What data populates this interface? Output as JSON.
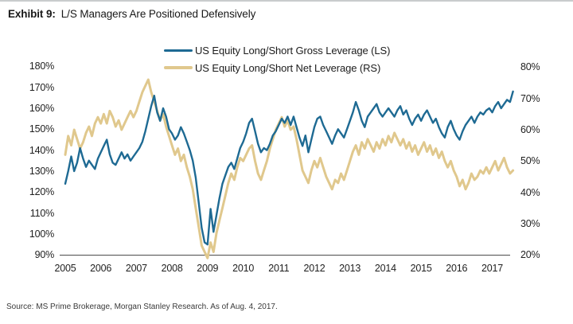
{
  "header": {
    "label": "Exhibit 9:",
    "title": "L/S Managers Are Positioned Defensively"
  },
  "footer": {
    "source": "Source: MS Prime Brokerage, Morgan Stanley Research. As of Aug. 4, 2017."
  },
  "chart_data": {
    "type": "line",
    "title": "L/S Managers Are Positioned Defensively",
    "grid": false,
    "legend_position": "top-center",
    "x_start_year": 2005,
    "points_per_year": 12,
    "x_tick_labels": [
      "2005",
      "2006",
      "2007",
      "2008",
      "2009",
      "2010",
      "2011",
      "2012",
      "2013",
      "2014",
      "2015",
      "2016",
      "2017"
    ],
    "x_tick_values": [
      2005,
      2006,
      2007,
      2008,
      2009,
      2010,
      2011,
      2012,
      2013,
      2014,
      2015,
      2016,
      2017
    ],
    "axes": {
      "left": {
        "min": 90,
        "max": 180,
        "tick_labels": [
          "180%",
          "170%",
          "160%",
          "150%",
          "140%",
          "130%",
          "120%",
          "110%",
          "100%",
          "90%"
        ],
        "tick_values": [
          180,
          170,
          160,
          150,
          140,
          130,
          120,
          110,
          100,
          90
        ]
      },
      "right": {
        "min": 20,
        "max": 80,
        "tick_labels": [
          "80%",
          "70%",
          "60%",
          "50%",
          "40%",
          "30%",
          "20%"
        ],
        "tick_values": [
          80,
          70,
          60,
          50,
          40,
          30,
          20
        ]
      }
    },
    "series": [
      {
        "name": "US Equity Long/Short Gross Leverage (LS)",
        "axis": "left",
        "color": "#1e6a93",
        "unit": "%",
        "values": [
          124,
          130,
          137,
          130,
          134,
          141,
          136,
          132,
          135,
          133,
          131,
          136,
          139,
          142,
          145,
          138,
          134,
          133,
          136,
          139,
          136,
          138,
          135,
          137,
          139,
          141,
          144,
          149,
          155,
          161,
          166,
          158,
          154,
          160,
          156,
          150,
          148,
          145,
          147,
          151,
          148,
          144,
          140,
          135,
          127,
          115,
          103,
          96,
          95,
          112,
          101,
          109,
          117,
          124,
          128,
          132,
          134,
          131,
          136,
          141,
          144,
          148,
          153,
          155,
          149,
          143,
          139,
          141,
          140,
          143,
          147,
          149,
          152,
          155,
          153,
          156,
          152,
          156,
          151,
          146,
          142,
          147,
          139,
          145,
          151,
          155,
          156,
          152,
          149,
          146,
          143,
          147,
          150,
          148,
          146,
          150,
          154,
          158,
          163,
          159,
          154,
          151,
          156,
          158,
          160,
          162,
          158,
          156,
          158,
          160,
          158,
          156,
          159,
          161,
          157,
          159,
          155,
          152,
          155,
          157,
          154,
          157,
          159,
          156,
          153,
          155,
          151,
          148,
          146,
          151,
          154,
          150,
          147,
          145,
          149,
          152,
          154,
          156,
          153,
          156,
          158,
          157,
          159,
          160,
          158,
          161,
          163,
          160,
          162,
          164,
          163,
          168
        ]
      },
      {
        "name": "US Equity Long/Short Net Leverage (RS)",
        "axis": "right",
        "color": "#e0c88d",
        "unit": "%",
        "values": [
          52,
          58,
          55,
          60,
          57,
          54,
          56,
          59,
          61,
          58,
          62,
          64,
          62,
          65,
          62,
          66,
          64,
          61,
          63,
          60,
          62,
          64,
          66,
          64,
          66,
          69,
          72,
          74,
          76,
          72,
          69,
          66,
          63,
          65,
          61,
          58,
          55,
          52,
          54,
          50,
          52,
          48,
          45,
          41,
          35,
          29,
          23,
          21,
          19,
          24,
          21,
          27,
          31,
          35,
          39,
          43,
          46,
          44,
          48,
          51,
          50,
          52,
          54,
          55,
          50,
          46,
          44,
          47,
          50,
          54,
          57,
          60,
          62,
          64,
          61,
          63,
          60,
          61,
          57,
          52,
          47,
          45,
          43,
          47,
          50,
          48,
          51,
          48,
          45,
          43,
          41,
          44,
          43,
          46,
          44,
          47,
          50,
          53,
          55,
          52,
          56,
          54,
          57,
          55,
          53,
          56,
          54,
          57,
          55,
          58,
          56,
          59,
          57,
          55,
          57,
          54,
          56,
          53,
          55,
          52,
          54,
          56,
          53,
          55,
          52,
          54,
          51,
          53,
          50,
          48,
          50,
          47,
          45,
          42,
          44,
          41,
          43,
          46,
          44,
          45,
          47,
          46,
          48,
          46,
          48,
          50,
          47,
          49,
          51,
          48,
          46,
          47
        ]
      }
    ]
  }
}
